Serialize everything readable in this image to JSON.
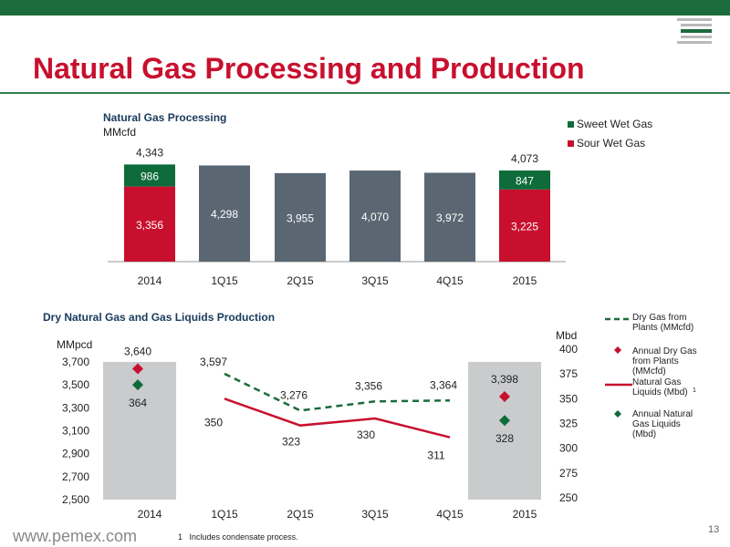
{
  "title": "Natural Gas Processing and Production",
  "footer": {
    "url": "www.pemex.com",
    "footnote_num": "1",
    "footnote": "Includes condensate process.",
    "page": "13"
  },
  "colors": {
    "brand_green": "#1b6b3c",
    "title_red": "#c8102e",
    "sweet": "#0e6b3a",
    "sour": "#c8102e",
    "total": "#5a6773",
    "band": "#c9cbcd"
  },
  "chart_data": [
    {
      "type": "bar",
      "title": "Natural Gas Processing",
      "subtitle": "MMcfd",
      "categories": [
        "2014",
        "1Q15",
        "2Q15",
        "3Q15",
        "4Q15",
        "2015"
      ],
      "stacked_series": [
        {
          "name": "Sour Wet Gas",
          "values": [
            3356,
            null,
            null,
            null,
            null,
            3225
          ],
          "labels": [
            "3,356",
            "",
            "",
            "",
            "",
            "3,225"
          ]
        },
        {
          "name": "Sweet Wet Gas",
          "values": [
            986,
            null,
            null,
            null,
            null,
            847
          ],
          "labels": [
            "986",
            "",
            "",
            "",
            "",
            "847"
          ]
        }
      ],
      "totals": {
        "values": [
          null,
          4298,
          3955,
          4070,
          3972,
          null
        ],
        "labels": [
          "",
          "4,298",
          "3,955",
          "4,070",
          "3,972",
          ""
        ]
      },
      "stack_totals": {
        "values": [
          4343,
          null,
          null,
          null,
          null,
          4073
        ],
        "labels": [
          "4,343",
          "",
          "",
          "",
          "",
          "4,073"
        ]
      },
      "ylim": [
        0,
        4800
      ],
      "legend": "top-right",
      "legend_items": [
        "Sweet Wet Gas",
        "Sour Wet Gas"
      ]
    },
    {
      "type": "line",
      "title": "Dry Natural Gas and Gas Liquids Production",
      "ylabel_left": "MMpcd",
      "ylabel_right": "Mbd",
      "categories": [
        "2014",
        "1Q15",
        "2Q15",
        "3Q15",
        "4Q15",
        "2015"
      ],
      "yticks_left": [
        "3,700",
        "3,500",
        "3,300",
        "3,100",
        "2,900",
        "2,700",
        "2,500"
      ],
      "yticks_right": [
        "400",
        "375",
        "350",
        "325",
        "300",
        "275",
        "250"
      ],
      "ylim_left": [
        2500,
        3700
      ],
      "ylim_right": [
        250,
        400
      ],
      "series": [
        {
          "name": "Dry Gas from Plants (MMcfd)",
          "axis": "left",
          "style": "dashed",
          "values": [
            null,
            3597,
            3276,
            3356,
            3364,
            null
          ],
          "labels": [
            "",
            "3,597",
            "3,276",
            "3,356",
            "3,364",
            ""
          ]
        },
        {
          "name": "Natural Gas Liquids (Mbd)",
          "axis": "right",
          "style": "solid",
          "values": [
            null,
            350,
            323,
            330,
            311,
            null
          ],
          "labels": [
            "",
            "350",
            "323",
            "330",
            "311",
            ""
          ]
        }
      ],
      "annual_points": [
        {
          "name": "Annual Dry Gas from Plants (MMcfd)",
          "axis": "left",
          "values": [
            3640,
            null,
            null,
            null,
            null,
            3398
          ],
          "labels": [
            "3,640",
            "",
            "",
            "",
            "",
            "3,398"
          ]
        },
        {
          "name": "Annual Natural Gas Liquids (Mbd)",
          "axis": "right",
          "values": [
            364,
            null,
            null,
            null,
            null,
            328
          ],
          "labels": [
            "364",
            "",
            "",
            "",
            "",
            "328"
          ]
        }
      ],
      "legend": "right",
      "legend_items": [
        "Dry Gas from Plants (MMcfd)",
        "Annual Dry Gas from Plants (MMcfd)",
        "Natural Gas Liquids (Mbd)",
        "Annual Natural Gas Liquids (Mbd)"
      ],
      "legend_footnote_mark": "1"
    }
  ]
}
